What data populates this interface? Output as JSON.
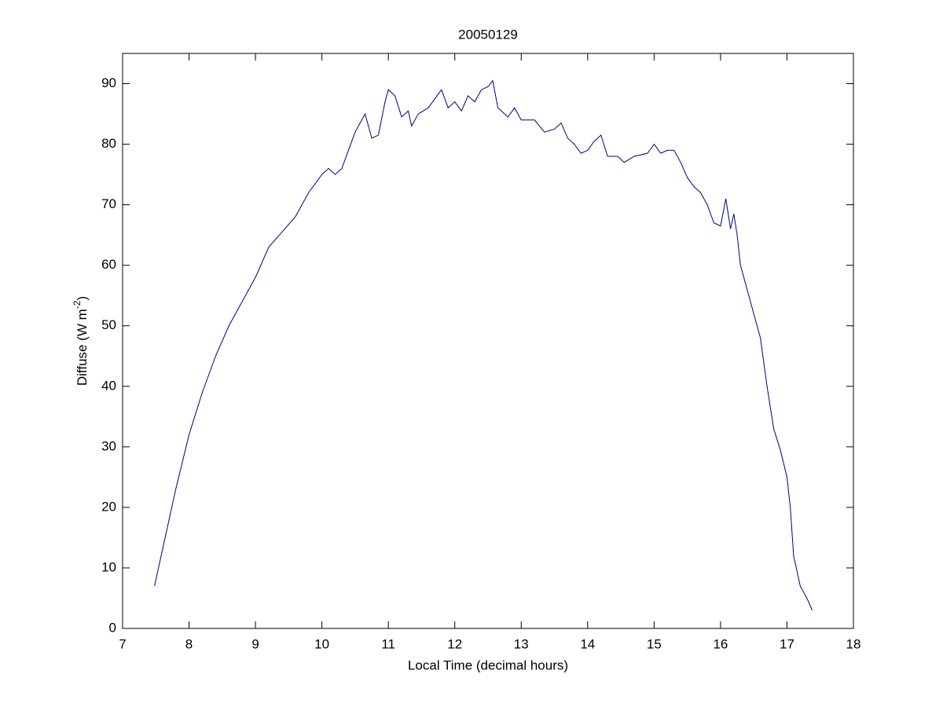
{
  "chart_data": {
    "type": "line",
    "title": "20050129",
    "x_label": "Local Time (decimal hours)",
    "y_label": [
      "Diffuse (W m",
      "-2",
      ")"
    ],
    "x": [
      7.48,
      7.6,
      7.8,
      8.0,
      8.2,
      8.4,
      8.6,
      8.8,
      9.0,
      9.2,
      9.4,
      9.6,
      9.8,
      10.0,
      10.1,
      10.2,
      10.3,
      10.4,
      10.5,
      10.6,
      10.65,
      10.75,
      10.85,
      10.95,
      11.0,
      11.1,
      11.2,
      11.3,
      11.35,
      11.45,
      11.6,
      11.7,
      11.8,
      11.9,
      12.0,
      12.1,
      12.2,
      12.3,
      12.4,
      12.5,
      12.57,
      12.65,
      12.8,
      12.9,
      13.0,
      13.2,
      13.35,
      13.5,
      13.6,
      13.7,
      13.8,
      13.9,
      14.0,
      14.1,
      14.2,
      14.3,
      14.45,
      14.55,
      14.7,
      14.9,
      15.0,
      15.1,
      15.2,
      15.3,
      15.4,
      15.5,
      15.6,
      15.7,
      15.8,
      15.9,
      16.0,
      16.08,
      16.15,
      16.2,
      16.25,
      16.3,
      16.4,
      16.5,
      16.6,
      16.7,
      16.8,
      16.9,
      17.0,
      17.05,
      17.1,
      17.2,
      17.3,
      17.38
    ],
    "series": [
      {
        "color": "#000080",
        "values": [
          7,
          13,
          23,
          32,
          39,
          45,
          50,
          54,
          58,
          63,
          65.5,
          68,
          72,
          75,
          76,
          75,
          76,
          79,
          82,
          84,
          85,
          81,
          81.5,
          87,
          89,
          88,
          84.5,
          85.5,
          83,
          85,
          86,
          87.5,
          89,
          86,
          87,
          85.5,
          88,
          87,
          89,
          89.5,
          90.5,
          86,
          84.5,
          86,
          84,
          84,
          82,
          82.5,
          83.5,
          81,
          80,
          78.5,
          79,
          80.5,
          81.5,
          78,
          78,
          77,
          78,
          78.5,
          80,
          78.5,
          79,
          79,
          77,
          74.5,
          73,
          72,
          70,
          67,
          66.5,
          71,
          66,
          68.5,
          65,
          60,
          56,
          52,
          48,
          40,
          33,
          29.5,
          25,
          20,
          12,
          7,
          5,
          3
        ]
      }
    ],
    "xlim": [
      7,
      18
    ],
    "xticks": [
      7,
      8,
      9,
      10,
      11,
      12,
      13,
      14,
      15,
      16,
      17,
      18
    ],
    "ylim": [
      0,
      95
    ],
    "yticks": [
      0,
      10,
      20,
      30,
      40,
      50,
      60,
      70,
      80,
      90
    ],
    "grid": false
  }
}
